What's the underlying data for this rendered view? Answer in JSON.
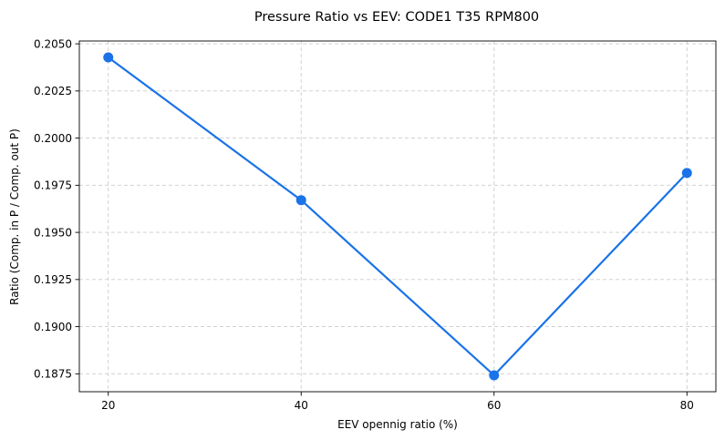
{
  "chart_data": {
    "type": "line",
    "title": "Pressure Ratio vs EEV: CODE1 T35 RPM800",
    "xlabel": "EEV opennig ratio (%)",
    "ylabel": "Ratio (Comp. in P / Comp. out P)",
    "x": [
      20,
      40,
      60,
      80
    ],
    "series": [
      {
        "name": "Pressure Ratio",
        "color": "#1a73e8",
        "values": [
          0.20428,
          0.19671,
          0.18742,
          0.19815
        ]
      }
    ],
    "xlim": [
      17,
      83
    ],
    "ylim": [
      0.18655,
      0.20515
    ],
    "xticks": [
      20,
      40,
      60,
      80
    ],
    "xtick_labels": [
      "20",
      "40",
      "60",
      "80"
    ],
    "yticks": [
      0.1875,
      0.19,
      0.1925,
      0.195,
      0.1975,
      0.2,
      0.2025,
      0.205
    ],
    "ytick_labels": [
      "0.1875",
      "0.1900",
      "0.1925",
      "0.1950",
      "0.1975",
      "0.2000",
      "0.2025",
      "0.2050"
    ],
    "grid": true,
    "marker": "circle"
  }
}
